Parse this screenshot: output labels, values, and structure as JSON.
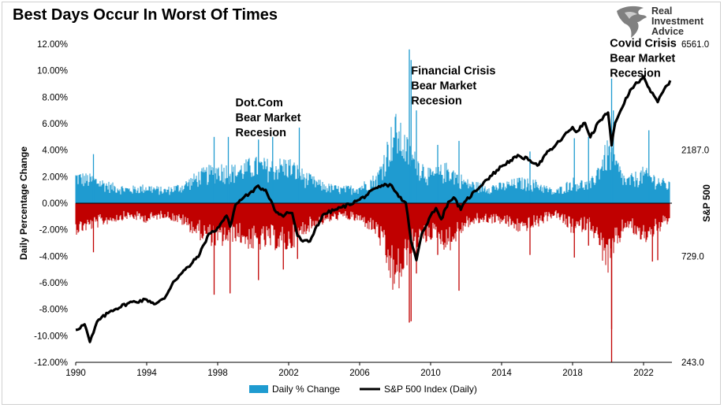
{
  "title": "Best Days Occur In Worst Of Times",
  "logo": {
    "lines": [
      "Real",
      "Investment",
      "Advice"
    ],
    "icon": "eagle-icon"
  },
  "chart_data": {
    "type": "bar",
    "title": "Best Days Occur In Worst Of Times",
    "ylabel": "Daily Percentage Change",
    "ylabel_right": "S&P 500",
    "xlim": [
      1990,
      2023.6
    ],
    "ylim": [
      -12,
      12
    ],
    "ylim_right_log": [
      243,
      6561
    ],
    "x_ticks": [
      "1990",
      "1994",
      "1998",
      "2002",
      "2006",
      "2010",
      "2014",
      "2018",
      "2022"
    ],
    "y_ticks": [
      "-12.00%",
      "-10.00%",
      "-8.00%",
      "-6.00%",
      "-4.00%",
      "-2.00%",
      "0.00%",
      "2.00%",
      "4.00%",
      "6.00%",
      "8.00%",
      "10.00%",
      "12.00%"
    ],
    "y_ticks_right": [
      "243.0",
      "729.0",
      "2187.0",
      "6561.0"
    ],
    "colors": {
      "positive": "#1f9bd0",
      "negative": "#c00000",
      "index": "#000000"
    },
    "legend": {
      "placement": "bottom",
      "items": [
        "Daily % Change",
        "S&P 500 Index (Daily)"
      ]
    },
    "annotations": [
      {
        "lines": [
          "Dot.Com",
          "Bear Market",
          "Recesion"
        ],
        "x": 1999.0,
        "y": 7.3
      },
      {
        "lines": [
          "Financial Crisis",
          "Bear Market",
          "Recesion"
        ],
        "x": 2008.9,
        "y": 9.7
      },
      {
        "lines": [
          "Covid Crisis",
          "Bear Market",
          "Recesion"
        ],
        "x": 2020.1,
        "y": 11.8
      }
    ],
    "series": [
      {
        "name": "Daily % Change",
        "envelope": {
          "x": [
            1990,
            1991,
            1992,
            1993,
            1994,
            1995,
            1996,
            1997,
            1998,
            1999,
            2000,
            2001,
            2002,
            2003,
            2004,
            2005,
            2006,
            2007,
            2008,
            2009,
            2010,
            2011,
            2012,
            2013,
            2014,
            2015,
            2016,
            2017,
            2018,
            2019,
            2020,
            2021,
            2022,
            2023.5
          ],
          "up": [
            2.5,
            2.2,
            1.6,
            1.3,
            1.5,
            1.2,
            1.6,
            2.6,
            3.2,
            3.0,
            3.6,
            3.4,
            3.6,
            2.4,
            1.6,
            1.3,
            1.5,
            2.4,
            7.0,
            4.2,
            2.6,
            3.2,
            1.9,
            1.5,
            1.6,
            2.0,
            1.8,
            1.0,
            2.0,
            1.7,
            5.0,
            2.0,
            2.8,
            1.6
          ],
          "down": [
            -2.4,
            -2.0,
            -1.5,
            -1.2,
            -1.5,
            -1.1,
            -1.7,
            -2.8,
            -3.5,
            -2.9,
            -3.7,
            -3.5,
            -3.8,
            -2.3,
            -1.6,
            -1.2,
            -1.5,
            -2.6,
            -7.5,
            -4.0,
            -2.8,
            -3.8,
            -1.9,
            -1.5,
            -1.6,
            -2.3,
            -1.9,
            -1.0,
            -2.4,
            -2.0,
            -5.5,
            -1.9,
            -3.2,
            -1.6
          ]
        },
        "spikes": [
          [
            1991.0,
            3.7
          ],
          [
            1991.0,
            -3.7
          ],
          [
            1997.8,
            5.0
          ],
          [
            1997.8,
            -6.9
          ],
          [
            1998.6,
            5.0
          ],
          [
            1998.7,
            -6.8
          ],
          [
            2000.3,
            4.8
          ],
          [
            2000.3,
            -5.8
          ],
          [
            2001.1,
            5.0
          ],
          [
            2001.7,
            -5.0
          ],
          [
            2002.6,
            5.7
          ],
          [
            2002.5,
            -4.2
          ],
          [
            2008.8,
            11.6
          ],
          [
            2008.9,
            10.8
          ],
          [
            2008.8,
            -9.0
          ],
          [
            2008.9,
            -8.9
          ],
          [
            2009.2,
            7.0
          ],
          [
            2009.2,
            -5.3
          ],
          [
            2010.4,
            4.4
          ],
          [
            2010.4,
            -3.9
          ],
          [
            2011.6,
            4.7
          ],
          [
            2011.6,
            -6.6
          ],
          [
            2015.6,
            3.9
          ],
          [
            2015.6,
            -3.9
          ],
          [
            2018.1,
            4.9
          ],
          [
            2018.1,
            -4.1
          ],
          [
            2018.9,
            5.0
          ],
          [
            2018.9,
            -3.2
          ],
          [
            2020.2,
            9.4
          ],
          [
            2020.2,
            -12.0
          ],
          [
            2020.2,
            -9.5
          ],
          [
            2020.3,
            7.0
          ],
          [
            2022.3,
            5.5
          ],
          [
            2022.5,
            -4.4
          ],
          [
            2022.8,
            -4.3
          ]
        ]
      },
      {
        "name": "S&P 500 Index (Daily)",
        "x": [
          1990.0,
          1990.5,
          1990.8,
          1991.0,
          1991.2,
          1992.0,
          1993.0,
          1994.0,
          1994.5,
          1995.0,
          1995.5,
          1996.0,
          1996.5,
          1997.0,
          1997.5,
          1997.8,
          1998.0,
          1998.5,
          1998.7,
          1999.0,
          1999.5,
          1999.8,
          2000.0,
          2000.2,
          2000.7,
          2001.0,
          2001.3,
          2001.7,
          2001.9,
          2002.2,
          2002.5,
          2002.8,
          2003.2,
          2003.5,
          2004.0,
          2005.0,
          2006.0,
          2007.0,
          2007.5,
          2007.8,
          2008.2,
          2008.6,
          2008.9,
          2009.2,
          2009.5,
          2010.0,
          2010.3,
          2010.6,
          2011.0,
          2011.3,
          2011.7,
          2012.0,
          2013.0,
          2014.0,
          2014.5,
          2015.0,
          2015.6,
          2016.1,
          2016.5,
          2017.0,
          2018.0,
          2018.2,
          2018.7,
          2019.0,
          2019.5,
          2020.0,
          2020.2,
          2020.4,
          2020.8,
          2021.0,
          2021.5,
          2022.0,
          2022.4,
          2022.8,
          2023.0,
          2023.5
        ],
        "y": [
          340,
          360,
          300,
          330,
          370,
          415,
          450,
          465,
          445,
          470,
          560,
          615,
          670,
          750,
          920,
          940,
          980,
          1110,
          990,
          1240,
          1350,
          1400,
          1420,
          1500,
          1450,
          1300,
          1150,
          1100,
          1150,
          1140,
          900,
          850,
          850,
          970,
          1130,
          1210,
          1310,
          1480,
          1530,
          1520,
          1350,
          1270,
          850,
          700,
          920,
          1110,
          1200,
          1070,
          1280,
          1340,
          1180,
          1300,
          1570,
          1850,
          1970,
          2060,
          1970,
          1880,
          2100,
          2280,
          2780,
          2640,
          2900,
          2500,
          2950,
          3230,
          2300,
          2900,
          3400,
          3750,
          4300,
          4700,
          4000,
          3600,
          3900,
          4500
        ]
      }
    ]
  }
}
